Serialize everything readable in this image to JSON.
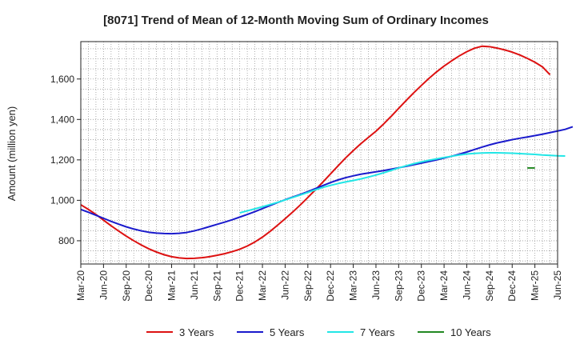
{
  "chart_data": {
    "type": "line",
    "title": "[8071]  Trend of Mean of 12-Month Moving Sum of Ordinary Incomes",
    "ylabel": "Amount (million yen)",
    "xlabel": "",
    "x_ticks": [
      "Mar-20",
      "Jun-20",
      "Sep-20",
      "Dec-20",
      "Mar-21",
      "Jun-21",
      "Sep-21",
      "Dec-21",
      "Mar-22",
      "Jun-22",
      "Sep-22",
      "Dec-22",
      "Mar-23",
      "Jun-23",
      "Sep-23",
      "Dec-23",
      "Mar-24",
      "Jun-24",
      "Sep-24",
      "Dec-24",
      "Mar-25",
      "Jun-25"
    ],
    "y_ticks": [
      800,
      1000,
      1200,
      1400,
      1600
    ],
    "y_tick_labels": [
      "800",
      "1,000",
      "1,200",
      "1,400",
      "1,600"
    ],
    "ylim": [
      685,
      1785
    ],
    "grid": true,
    "legend_position": "bottom",
    "series": [
      {
        "name": "3 Years",
        "color": "#dd1111",
        "start": "Mar-20",
        "values": [
          978,
          955,
          930,
          902,
          874,
          848,
          823,
          800,
          779,
          760,
          744,
          731,
          721,
          715,
          712,
          713,
          716,
          721,
          728,
          736,
          746,
          758,
          774,
          794,
          818,
          846,
          877,
          909,
          942,
          977,
          1014,
          1052,
          1091,
          1131,
          1171,
          1210,
          1246,
          1280,
          1311,
          1342,
          1377,
          1415,
          1455,
          1494,
          1532,
          1568,
          1603,
          1635,
          1664,
          1690,
          1714,
          1735,
          1752,
          1762,
          1760,
          1753,
          1744,
          1733,
          1719,
          1702,
          1683,
          1660,
          1621
        ]
      },
      {
        "name": "5 Years",
        "color": "#1a1acc",
        "start": "Mar-20",
        "values": [
          955,
          941,
          926,
          911,
          896,
          882,
          869,
          858,
          849,
          842,
          838,
          836,
          835,
          837,
          841,
          849,
          859,
          870,
          881,
          892,
          904,
          917,
          930,
          944,
          959,
          974,
          989,
          1003,
          1016,
          1029,
          1043,
          1058,
          1073,
          1088,
          1101,
          1112,
          1121,
          1129,
          1135,
          1141,
          1147,
          1154,
          1161,
          1168,
          1176,
          1184,
          1192,
          1200,
          1209,
          1218,
          1228,
          1239,
          1251,
          1263,
          1274,
          1284,
          1292,
          1300,
          1307,
          1313,
          1320,
          1327,
          1335,
          1343,
          1351,
          1364
        ]
      },
      {
        "name": "7 Years",
        "color": "#22e6e6",
        "start": "Dec-21",
        "values": [
          938,
          948,
          958,
          968,
          979,
          990,
          1002,
          1014,
          1026,
          1039,
          1052,
          1064,
          1074,
          1083,
          1091,
          1098,
          1106,
          1115,
          1125,
          1136,
          1148,
          1160,
          1171,
          1181,
          1190,
          1198,
          1205,
          1212,
          1218,
          1224,
          1229,
          1232,
          1234,
          1235,
          1235,
          1234,
          1233,
          1231,
          1229,
          1227,
          1224,
          1222,
          1220,
          1219
        ]
      },
      {
        "name": "10 Years",
        "color": "#228822",
        "start": "Feb-25",
        "values": [
          1160,
          1160
        ]
      }
    ]
  }
}
